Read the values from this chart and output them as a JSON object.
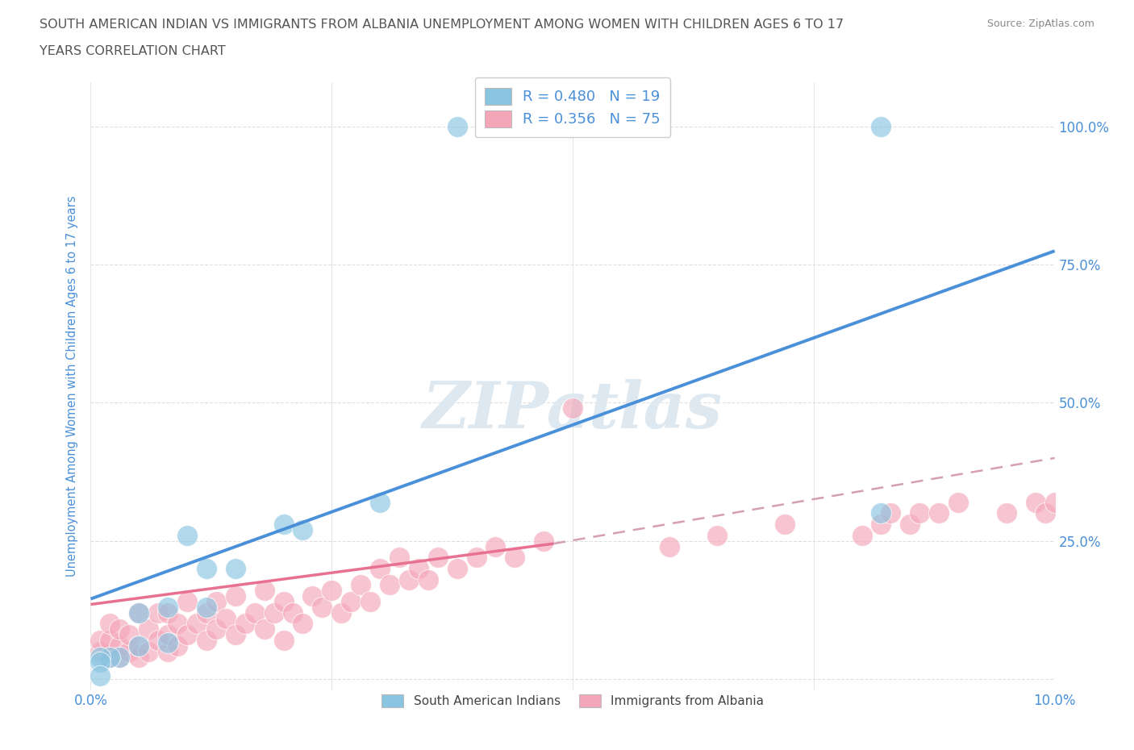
{
  "title_line1": "SOUTH AMERICAN INDIAN VS IMMIGRANTS FROM ALBANIA UNEMPLOYMENT AMONG WOMEN WITH CHILDREN AGES 6 TO 17",
  "title_line2": "YEARS CORRELATION CHART",
  "source_text": "Source: ZipAtlas.com",
  "ylabel": "Unemployment Among Women with Children Ages 6 to 17 years",
  "xlim": [
    0.0,
    0.1
  ],
  "ylim": [
    -0.02,
    1.08
  ],
  "ytick_values": [
    0.0,
    0.25,
    0.5,
    0.75,
    1.0
  ],
  "ytick_labels": [
    "",
    "25.0%",
    "50.0%",
    "75.0%",
    "100.0%"
  ],
  "xtick_values": [
    0.0,
    0.025,
    0.05,
    0.075,
    0.1
  ],
  "xtick_labels": [
    "0.0%",
    "",
    "",
    "",
    "10.0%"
  ],
  "legend_r1": "R = 0.480",
  "legend_n1": "N = 19",
  "legend_r2": "R = 0.356",
  "legend_n2": "N = 75",
  "legend_label1": "South American Indians",
  "legend_label2": "Immigrants from Albania",
  "watermark": "ZIPatlas",
  "blue_scatter_x": [
    0.03,
    0.082,
    0.02,
    0.022,
    0.01,
    0.012,
    0.015,
    0.012,
    0.008,
    0.005,
    0.008,
    0.005,
    0.003,
    0.002,
    0.001,
    0.001,
    0.001,
    0.038,
    0.082
  ],
  "blue_scatter_y": [
    0.32,
    0.3,
    0.28,
    0.27,
    0.26,
    0.2,
    0.2,
    0.13,
    0.13,
    0.12,
    0.065,
    0.06,
    0.04,
    0.04,
    0.04,
    0.03,
    0.005,
    1.0,
    1.0
  ],
  "pink_scatter_x": [
    0.001,
    0.001,
    0.002,
    0.002,
    0.002,
    0.003,
    0.003,
    0.003,
    0.004,
    0.004,
    0.005,
    0.005,
    0.005,
    0.006,
    0.006,
    0.007,
    0.007,
    0.008,
    0.008,
    0.008,
    0.009,
    0.009,
    0.01,
    0.01,
    0.011,
    0.012,
    0.012,
    0.013,
    0.013,
    0.014,
    0.015,
    0.015,
    0.016,
    0.017,
    0.018,
    0.018,
    0.019,
    0.02,
    0.02,
    0.021,
    0.022,
    0.023,
    0.024,
    0.025,
    0.026,
    0.027,
    0.028,
    0.029,
    0.03,
    0.031,
    0.032,
    0.033,
    0.034,
    0.035,
    0.036,
    0.038,
    0.04,
    0.042,
    0.044,
    0.047,
    0.05,
    0.06,
    0.065,
    0.072,
    0.08,
    0.082,
    0.083,
    0.085,
    0.086,
    0.088,
    0.09,
    0.095,
    0.098,
    0.099,
    0.1
  ],
  "pink_scatter_y": [
    0.05,
    0.07,
    0.04,
    0.07,
    0.1,
    0.04,
    0.06,
    0.09,
    0.05,
    0.08,
    0.04,
    0.06,
    0.12,
    0.05,
    0.09,
    0.07,
    0.12,
    0.05,
    0.08,
    0.12,
    0.06,
    0.1,
    0.08,
    0.14,
    0.1,
    0.07,
    0.12,
    0.09,
    0.14,
    0.11,
    0.08,
    0.15,
    0.1,
    0.12,
    0.09,
    0.16,
    0.12,
    0.07,
    0.14,
    0.12,
    0.1,
    0.15,
    0.13,
    0.16,
    0.12,
    0.14,
    0.17,
    0.14,
    0.2,
    0.17,
    0.22,
    0.18,
    0.2,
    0.18,
    0.22,
    0.2,
    0.22,
    0.24,
    0.22,
    0.25,
    0.49,
    0.24,
    0.26,
    0.28,
    0.26,
    0.28,
    0.3,
    0.28,
    0.3,
    0.3,
    0.32,
    0.3,
    0.32,
    0.3,
    0.32
  ],
  "blue_line_x": [
    0.0,
    0.1
  ],
  "blue_line_y": [
    0.145,
    0.775
  ],
  "pink_solid_line_x": [
    0.0,
    0.048
  ],
  "pink_solid_line_y": [
    0.135,
    0.245
  ],
  "pink_dashed_line_x": [
    0.048,
    0.1
  ],
  "pink_dashed_line_y": [
    0.245,
    0.4
  ],
  "blue_color": "#89c4e1",
  "pink_color": "#f4a7b9",
  "blue_line_color": "#4a90d9",
  "pink_line_color": "#e87090",
  "pink_dashed_color": "#d4a0b0",
  "grid_color": "#e0e0e0",
  "background_color": "#ffffff",
  "title_color": "#555555",
  "tick_label_color": "#4a90d9",
  "watermark_color": "#dde8f0"
}
